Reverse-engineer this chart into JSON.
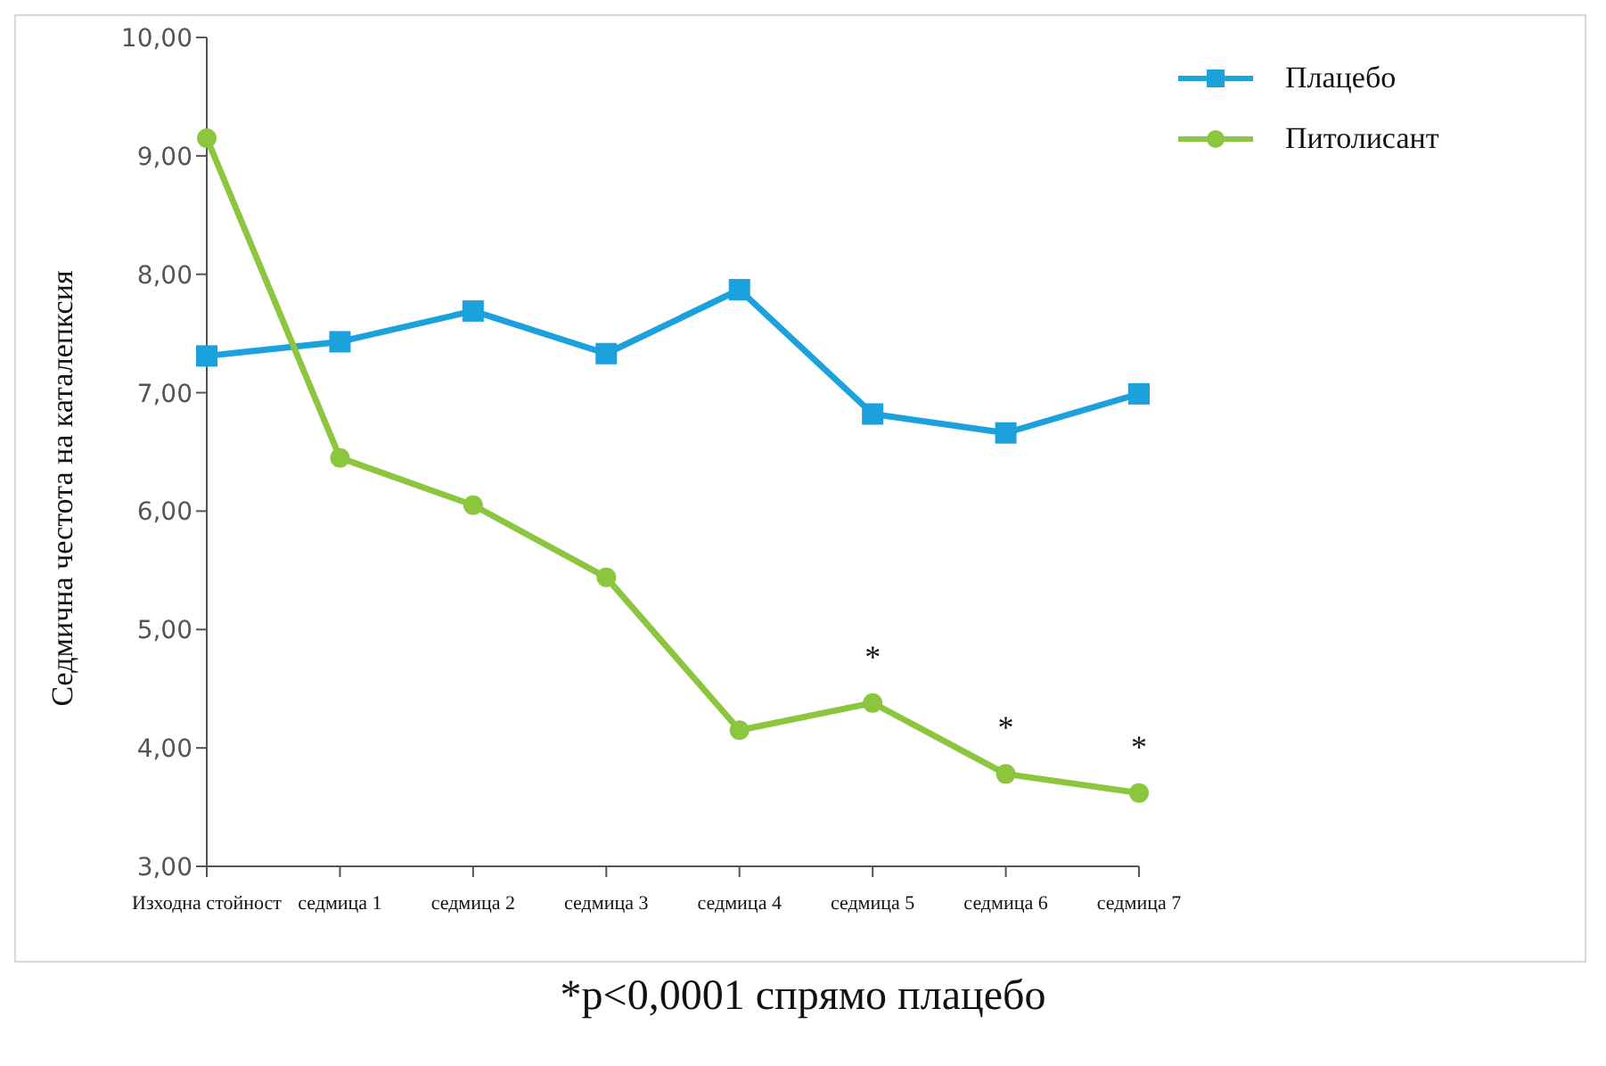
{
  "chart_data": {
    "type": "line",
    "ylabel": "Седмична честота на каталепксия",
    "categories": [
      "Изходна стойност",
      "седмица 1",
      "седмица 2",
      "седмица 3",
      "седмица 4",
      "седмица 5",
      "седмица 6",
      "седмица 7"
    ],
    "series": [
      {
        "name": "Плацебо",
        "color": "#1ba1dc",
        "marker": "square",
        "values": [
          7.31,
          7.43,
          7.69,
          7.33,
          7.87,
          6.82,
          6.66,
          6.99
        ]
      },
      {
        "name": "Питолисант",
        "color": "#8cc63f",
        "marker": "circle",
        "values": [
          9.15,
          6.45,
          6.05,
          5.44,
          4.15,
          4.38,
          3.78,
          3.62
        ]
      }
    ],
    "ylim": [
      3,
      10
    ],
    "yticks": [
      {
        "value": 3,
        "label": "3,00"
      },
      {
        "value": 4,
        "label": "4,00"
      },
      {
        "value": 5,
        "label": "5,00"
      },
      {
        "value": 6,
        "label": "6,00"
      },
      {
        "value": 7,
        "label": "7,00"
      },
      {
        "value": 8,
        "label": "8,00"
      },
      {
        "value": 9,
        "label": "9,00"
      },
      {
        "value": 10,
        "label": "10,00"
      }
    ],
    "grid": false,
    "legend": "top right",
    "line_style": "solid",
    "annotations": [
      {
        "text": "*",
        "x": "седмица 5",
        "y": 4.38
      },
      {
        "text": "*",
        "x": "седмица 6",
        "y": 3.78
      },
      {
        "text": "*",
        "x": "седмица 7",
        "y": 3.62
      },
      "*p<0,0001 спрямо плацебо"
    ]
  }
}
